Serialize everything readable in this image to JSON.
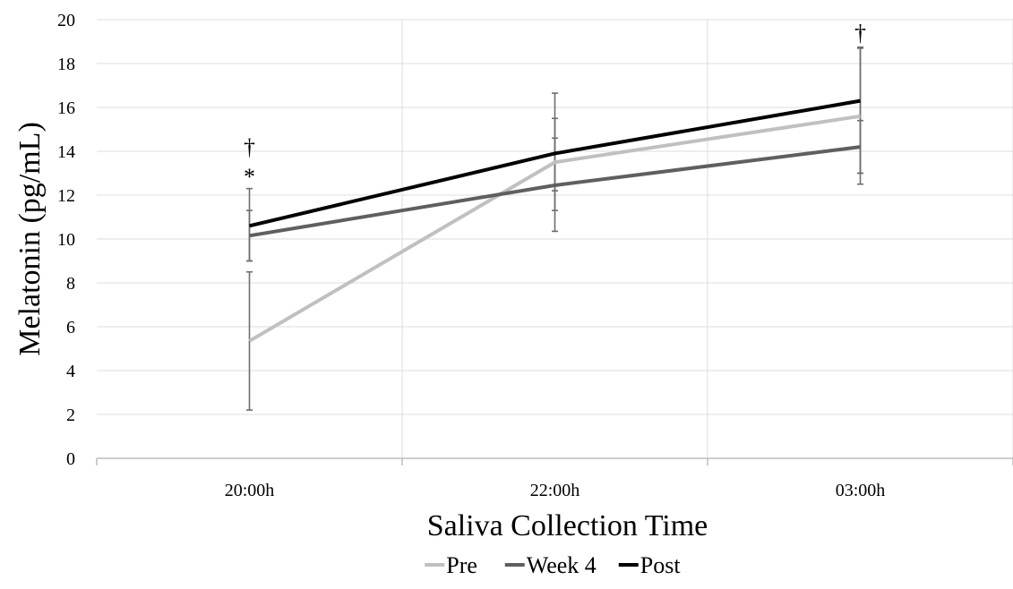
{
  "chart_data": {
    "type": "line",
    "title": "",
    "xlabel": "Saliva Collection Time",
    "ylabel": "Melatonin (pg/mL)",
    "categories": [
      "20:00h",
      "22:00h",
      "03:00h"
    ],
    "ylim": [
      0,
      20
    ],
    "yticks": [
      0,
      2,
      4,
      6,
      8,
      10,
      12,
      14,
      16,
      18,
      20
    ],
    "grid": true,
    "legend_position": "bottom",
    "series": [
      {
        "name": "Pre",
        "color": "#c0c0c0",
        "values": [
          5.35,
          13.5,
          15.6
        ],
        "error_low": [
          2.2,
          11.3,
          12.5
        ],
        "error_high": [
          8.5,
          15.5,
          18.7
        ]
      },
      {
        "name": "Week 4",
        "color": "#5f5f5f",
        "values": [
          10.15,
          12.45,
          14.2
        ],
        "error_low": [
          9.0,
          10.35,
          13.0
        ],
        "error_high": [
          11.3,
          14.6,
          15.4
        ]
      },
      {
        "name": "Post",
        "color": "#000000",
        "values": [
          10.6,
          13.9,
          16.3
        ],
        "error_low": [
          9.0,
          12.2,
          13.0
        ],
        "error_high": [
          12.3,
          16.65,
          18.75
        ]
      }
    ],
    "annotations": [
      {
        "category": "20:00h",
        "text": "†",
        "at": 14.2
      },
      {
        "category": "20:00h",
        "text": "*",
        "at": 12.85
      },
      {
        "category": "03:00h",
        "text": "†",
        "at": 19.4
      }
    ]
  }
}
